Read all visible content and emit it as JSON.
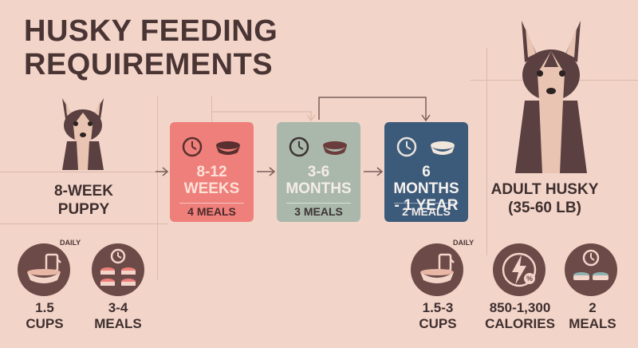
{
  "title": {
    "line1": "HUSKY FEEDING",
    "line2": "REQUIREMENTS"
  },
  "puppy": {
    "name_line1": "8-WEEK",
    "name_line2": "PUPPY",
    "stats": [
      {
        "value": "1.5",
        "unit": "CUPS",
        "icon": "measuring-cup-bowl-icon",
        "badge": "DAILY"
      },
      {
        "value": "3-4",
        "unit": "MEALS",
        "icon": "clock-bowls-icon"
      }
    ]
  },
  "stages": [
    {
      "label_line1": "8-12",
      "label_line2": "WEEKS",
      "meals": "4 MEALS",
      "color": "#ee7f7a"
    },
    {
      "label_line1": "3-6",
      "label_line2": "MONTHS",
      "meals": "3 MEALS",
      "color": "#a9b8ab"
    },
    {
      "label_line1": "6 MONTHS",
      "label_line2": "- 1 YEAR",
      "meals": "2 MEALS",
      "color": "#3c5a7a"
    }
  ],
  "adult": {
    "name_line1": "ADULT HUSKY",
    "name_line2": "(35-60 LB)",
    "stats": [
      {
        "value": "1.5-3",
        "unit": "CUPS",
        "icon": "measuring-cup-bowl-icon",
        "badge": "DAILY"
      },
      {
        "value": "850-1,300",
        "unit": "CALORIES",
        "icon": "energy-percent-icon"
      },
      {
        "value": "2",
        "unit": "MEALS",
        "icon": "clock-bowls-icon"
      }
    ]
  },
  "colors": {
    "background": "#f3d4c8",
    "text": "#4a3535",
    "circle": "#6b4a48"
  }
}
